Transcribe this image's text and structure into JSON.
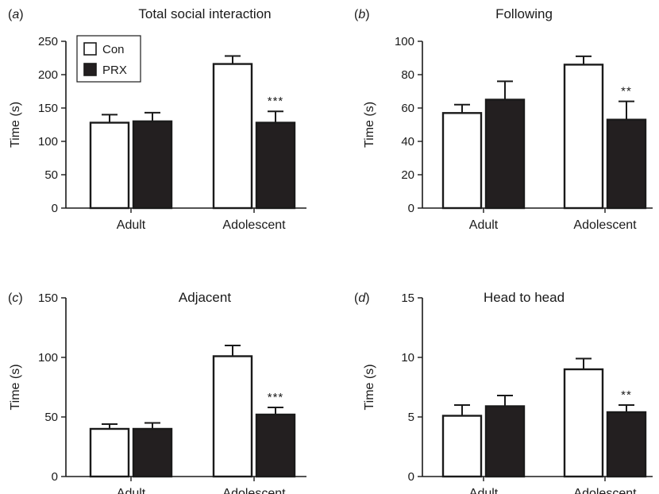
{
  "chart_data": [
    {
      "type": "bar",
      "panel_label": "a",
      "title": "Total social interaction",
      "ylabel": "Time (s)",
      "ylim": [
        0,
        250
      ],
      "yticks": [
        0,
        50,
        100,
        150,
        200,
        250
      ],
      "categories": [
        "Adult",
        "Adolescent"
      ],
      "series": [
        {
          "name": "Con",
          "values": [
            128,
            216
          ],
          "errors": [
            12,
            12
          ]
        },
        {
          "name": "PRX",
          "values": [
            130,
            128
          ],
          "errors": [
            13,
            17
          ]
        }
      ],
      "annotations": [
        {
          "category": "Adolescent",
          "series": "PRX",
          "text": "***"
        }
      ],
      "legend": {
        "position": "top-left",
        "entries": [
          "Con",
          "PRX"
        ]
      }
    },
    {
      "type": "bar",
      "panel_label": "b",
      "title": "Following",
      "ylabel": "Time (s)",
      "ylim": [
        0,
        100
      ],
      "yticks": [
        0,
        20,
        40,
        60,
        80,
        100
      ],
      "categories": [
        "Adult",
        "Adolescent"
      ],
      "series": [
        {
          "name": "Con",
          "values": [
            57,
            86
          ],
          "errors": [
            5,
            5
          ]
        },
        {
          "name": "PRX",
          "values": [
            65,
            53
          ],
          "errors": [
            11,
            11
          ]
        }
      ],
      "annotations": [
        {
          "category": "Adolescent",
          "series": "PRX",
          "text": "**"
        }
      ]
    },
    {
      "type": "bar",
      "panel_label": "c",
      "title": "Adjacent",
      "ylabel": "Time (s)",
      "ylim": [
        0,
        150
      ],
      "yticks": [
        0,
        50,
        100,
        150
      ],
      "categories": [
        "Adult",
        "Adolescent"
      ],
      "series": [
        {
          "name": "Con",
          "values": [
            40,
            101
          ],
          "errors": [
            4,
            9
          ]
        },
        {
          "name": "PRX",
          "values": [
            40,
            52
          ],
          "errors": [
            5,
            6
          ]
        }
      ],
      "annotations": [
        {
          "category": "Adolescent",
          "series": "PRX",
          "text": "***"
        }
      ]
    },
    {
      "type": "bar",
      "panel_label": "d",
      "title": "Head to head",
      "ylabel": "Time (s)",
      "ylim": [
        0,
        15
      ],
      "yticks": [
        0,
        5,
        10,
        15
      ],
      "categories": [
        "Adult",
        "Adolescent"
      ],
      "series": [
        {
          "name": "Con",
          "values": [
            5.1,
            9.0
          ],
          "errors": [
            0.9,
            0.9
          ]
        },
        {
          "name": "PRX",
          "values": [
            5.9,
            5.4
          ],
          "errors": [
            0.9,
            0.6
          ]
        }
      ],
      "annotations": [
        {
          "category": "Adolescent",
          "series": "PRX",
          "text": "**"
        }
      ]
    }
  ],
  "colors": {
    "con_fill": "#ffffff",
    "prx_fill": "#231f20",
    "ink": "#1a1a1a"
  }
}
